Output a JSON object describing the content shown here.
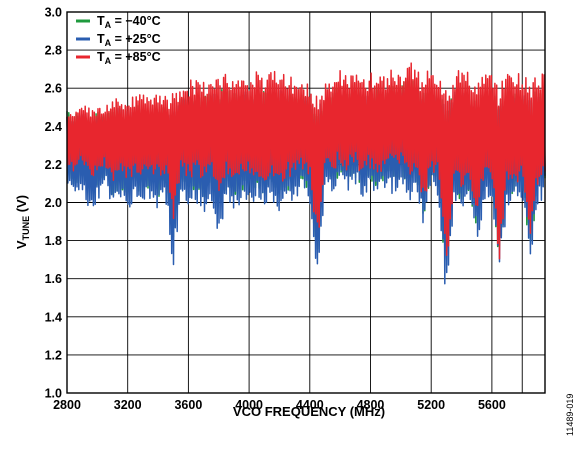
{
  "chart_data": {
    "type": "line",
    "xlabel": "VCO FREQUENCY (MHz)",
    "ylabel": {
      "prefix": "V",
      "subscript": "TUNE",
      "suffix": " (V)"
    },
    "x_ticks": [
      2800,
      3200,
      3600,
      4000,
      4400,
      4800,
      5200,
      5600
    ],
    "y_ticks": [
      "1.0",
      "1.2",
      "1.4",
      "1.6",
      "1.8",
      "2.0",
      "2.2",
      "2.4",
      "2.6",
      "2.8",
      "3.0"
    ],
    "xlim": [
      2800,
      5950
    ],
    "ylim": [
      1.0,
      3.0
    ],
    "grid": true,
    "legend_position": "top-left",
    "series": [
      {
        "id": "ta-minus40",
        "name_prefix": "T",
        "name_subscript": "A",
        "name_suffix": " = −40°C",
        "color": "#1f9a3e",
        "x": [
          2800,
          2850,
          2900,
          2950,
          3000,
          3050,
          3100,
          3150,
          3200,
          3250,
          3300,
          3350,
          3400,
          3450,
          3500,
          3550,
          3600,
          3650,
          3700,
          3750,
          3800,
          3850,
          3900,
          3950,
          4000,
          4050,
          4100,
          4150,
          4200,
          4250,
          4300,
          4350,
          4400,
          4450,
          4500,
          4550,
          4600,
          4650,
          4700,
          4750,
          4800,
          4850,
          4900,
          4950,
          5000,
          5050,
          5100,
          5150,
          5200,
          5250,
          5300,
          5350,
          5400,
          5450,
          5500,
          5550,
          5600,
          5650,
          5700,
          5750,
          5800,
          5850,
          5900,
          5950
        ],
        "lower": [
          2.12,
          2.08,
          2.12,
          2.03,
          2.06,
          2.14,
          2.02,
          2.07,
          2.04,
          2.06,
          2.05,
          2.08,
          2.02,
          2.08,
          1.8,
          2.06,
          2.03,
          2.06,
          2.02,
          2.07,
          2.0,
          2.06,
          2.03,
          2.06,
          2.05,
          2.07,
          2.02,
          2.06,
          2.02,
          2.05,
          2.08,
          2.1,
          2.06,
          1.68,
          2.12,
          2.1,
          2.14,
          2.1,
          2.12,
          2.08,
          2.12,
          2.06,
          2.12,
          2.1,
          2.14,
          2.04,
          2.12,
          1.9,
          2.1,
          2.06,
          1.55,
          2.05,
          2.0,
          2.06,
          1.86,
          2.05,
          2.08,
          1.63,
          2.02,
          2.05,
          2.06,
          1.72,
          2.03,
          2.1
        ],
        "upper": [
          2.48,
          2.46,
          2.5,
          2.47,
          2.49,
          2.48,
          2.5,
          2.51,
          2.49,
          2.52,
          2.53,
          2.5,
          2.54,
          2.52,
          2.51,
          2.55,
          2.56,
          2.57,
          2.56,
          2.58,
          2.59,
          2.6,
          2.57,
          2.6,
          2.59,
          2.61,
          2.58,
          2.62,
          2.6,
          2.61,
          2.57,
          2.58,
          2.55,
          2.52,
          2.56,
          2.58,
          2.62,
          2.59,
          2.63,
          2.58,
          2.6,
          2.62,
          2.58,
          2.63,
          2.61,
          2.68,
          2.62,
          2.6,
          2.62,
          2.58,
          2.56,
          2.6,
          2.62,
          2.6,
          2.58,
          2.62,
          2.6,
          2.58,
          2.6,
          2.62,
          2.6,
          2.58,
          2.6,
          2.64
        ]
      },
      {
        "id": "ta-plus25",
        "name_prefix": "T",
        "name_subscript": "A",
        "name_suffix": " = +25°C",
        "color": "#2a5db0",
        "x": [
          2800,
          2850,
          2900,
          2950,
          3000,
          3050,
          3100,
          3150,
          3200,
          3250,
          3300,
          3350,
          3400,
          3450,
          3500,
          3550,
          3600,
          3650,
          3700,
          3750,
          3800,
          3850,
          3900,
          3950,
          4000,
          4050,
          4100,
          4150,
          4200,
          4250,
          4300,
          4350,
          4400,
          4450,
          4500,
          4550,
          4600,
          4650,
          4700,
          4750,
          4800,
          4850,
          4900,
          4950,
          5000,
          5050,
          5100,
          5150,
          5200,
          5250,
          5300,
          5350,
          5400,
          5450,
          5500,
          5550,
          5600,
          5650,
          5700,
          5750,
          5800,
          5850,
          5900,
          5950
        ],
        "lower": [
          2.08,
          2.02,
          2.05,
          1.95,
          2.0,
          2.1,
          1.94,
          2.0,
          1.96,
          2.0,
          1.98,
          2.02,
          1.95,
          2.02,
          1.64,
          2.0,
          1.96,
          2.0,
          1.94,
          2.02,
          1.78,
          2.0,
          1.96,
          2.0,
          1.98,
          2.02,
          1.96,
          2.0,
          1.95,
          1.98,
          2.02,
          2.06,
          2.0,
          1.54,
          2.08,
          2.06,
          2.1,
          2.06,
          2.08,
          2.03,
          2.08,
          2.0,
          2.08,
          2.04,
          2.1,
          1.98,
          2.08,
          1.82,
          2.06,
          2.0,
          1.44,
          1.98,
          1.94,
          2.0,
          1.78,
          1.98,
          2.02,
          1.6,
          1.96,
          1.98,
          2.0,
          1.66,
          1.96,
          2.06
        ],
        "upper": [
          2.46,
          2.44,
          2.48,
          2.46,
          2.48,
          2.47,
          2.48,
          2.5,
          2.48,
          2.51,
          2.52,
          2.49,
          2.53,
          2.51,
          2.5,
          2.54,
          2.55,
          2.56,
          2.55,
          2.57,
          2.58,
          2.59,
          2.56,
          2.59,
          2.58,
          2.6,
          2.57,
          2.61,
          2.59,
          2.6,
          2.56,
          2.57,
          2.54,
          2.5,
          2.55,
          2.57,
          2.61,
          2.58,
          2.62,
          2.57,
          2.59,
          2.61,
          2.57,
          2.62,
          2.6,
          2.66,
          2.61,
          2.59,
          2.61,
          2.57,
          2.55,
          2.59,
          2.61,
          2.59,
          2.57,
          2.61,
          2.59,
          2.57,
          2.59,
          2.61,
          2.59,
          2.57,
          2.59,
          2.63
        ]
      },
      {
        "id": "ta-plus85",
        "name_prefix": "T",
        "name_subscript": "A",
        "name_suffix": " = +85°C",
        "color": "#e8262e",
        "x": [
          2800,
          2850,
          2900,
          2950,
          3000,
          3050,
          3100,
          3150,
          3200,
          3250,
          3300,
          3350,
          3400,
          3450,
          3500,
          3550,
          3600,
          3650,
          3700,
          3750,
          3800,
          3850,
          3900,
          3950,
          4000,
          4050,
          4100,
          4150,
          4200,
          4250,
          4300,
          4350,
          4400,
          4450,
          4500,
          4550,
          4600,
          4650,
          4700,
          4750,
          4800,
          4850,
          4900,
          4950,
          5000,
          5050,
          5100,
          5150,
          5200,
          5250,
          5300,
          5350,
          5400,
          5450,
          5500,
          5550,
          5600,
          5650,
          5700,
          5750,
          5800,
          5850,
          5900,
          5950
        ],
        "lower": [
          2.2,
          2.16,
          2.22,
          2.12,
          2.15,
          2.2,
          2.1,
          2.15,
          2.12,
          2.14,
          2.14,
          2.16,
          2.12,
          2.16,
          1.9,
          2.14,
          2.12,
          2.15,
          2.1,
          2.15,
          2.06,
          2.14,
          2.1,
          2.14,
          2.12,
          2.15,
          2.1,
          2.14,
          2.1,
          2.12,
          2.14,
          2.16,
          2.12,
          1.76,
          2.18,
          2.16,
          2.2,
          2.16,
          2.18,
          2.14,
          2.18,
          2.12,
          2.18,
          2.16,
          2.2,
          2.1,
          2.18,
          1.98,
          2.16,
          2.12,
          1.6,
          2.1,
          2.06,
          2.12,
          1.94,
          2.1,
          2.14,
          1.62,
          2.08,
          2.1,
          2.12,
          1.8,
          2.08,
          2.16
        ],
        "upper": [
          2.5,
          2.48,
          2.52,
          2.5,
          2.52,
          2.52,
          2.54,
          2.56,
          2.54,
          2.57,
          2.58,
          2.56,
          2.6,
          2.58,
          2.58,
          2.62,
          2.64,
          2.65,
          2.63,
          2.66,
          2.67,
          2.68,
          2.64,
          2.68,
          2.67,
          2.7,
          2.66,
          2.7,
          2.68,
          2.69,
          2.64,
          2.65,
          2.62,
          2.58,
          2.63,
          2.65,
          2.7,
          2.66,
          2.71,
          2.65,
          2.68,
          2.7,
          2.66,
          2.72,
          2.68,
          2.75,
          2.7,
          2.68,
          2.7,
          2.66,
          2.64,
          2.68,
          2.7,
          2.68,
          2.66,
          2.7,
          2.68,
          2.66,
          2.68,
          2.7,
          2.68,
          2.66,
          2.68,
          2.7
        ]
      }
    ]
  },
  "figure_id": "11489-019"
}
